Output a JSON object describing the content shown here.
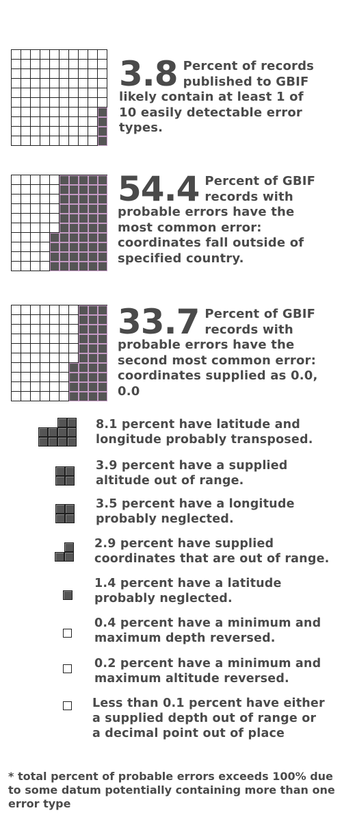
{
  "chart_data": {
    "type": "waffle",
    "main": [
      {
        "value": 3.8,
        "value_label": "3.8",
        "text": "Percent of records published to GBIF likely contain at least 1 of 10 easily detectable error types.",
        "filled_cells": 4
      },
      {
        "value": 54.4,
        "value_label": "54.4",
        "text": "Percent of GBIF records with probable errors have the most common error: coordinates fall outside of specified country.",
        "filled_cells": 54
      },
      {
        "value": 33.7,
        "value_label": "33.7",
        "text": "Percent of GBIF records with probable errors have the second most common error: coordinates supplied as 0.0, 0.0",
        "filled_cells": 34
      }
    ],
    "items": [
      {
        "value": 8.1,
        "text": "8.1 percent have latitude and longitude probably transposed.",
        "filled_cells": 8
      },
      {
        "value": 3.9,
        "text": "3.9 percent have a supplied altitude out of range.",
        "filled_cells": 4
      },
      {
        "value": 3.5,
        "text": "3.5 percent have a longitude probably neglected.",
        "filled_cells": 4
      },
      {
        "value": 2.9,
        "text": "2.9 percent have supplied coordinates that are out of range.",
        "filled_cells": 3
      },
      {
        "value": 1.4,
        "text": "1.4 percent have a latitude probably neglected.",
        "filled_cells": 1
      },
      {
        "value": 0.4,
        "text": "0.4 percent have a minimum and maximum depth reversed.",
        "filled_cells": 0
      },
      {
        "value": 0.2,
        "text": "0.2 percent have a minimum and maximum altitude reversed.",
        "filled_cells": 0
      },
      {
        "value": 0.1,
        "text": "Less than 0.1 percent have either a supplied depth out of range or a decimal point out of place",
        "filled_cells": 0
      }
    ],
    "footnote": "* total percent of probable errors exceeds 100% due to some datum potentially containing more than one error type"
  },
  "colors": {
    "filled": "#555555",
    "filled_outline": "#c39ac3",
    "text": "#4a4a4a"
  }
}
